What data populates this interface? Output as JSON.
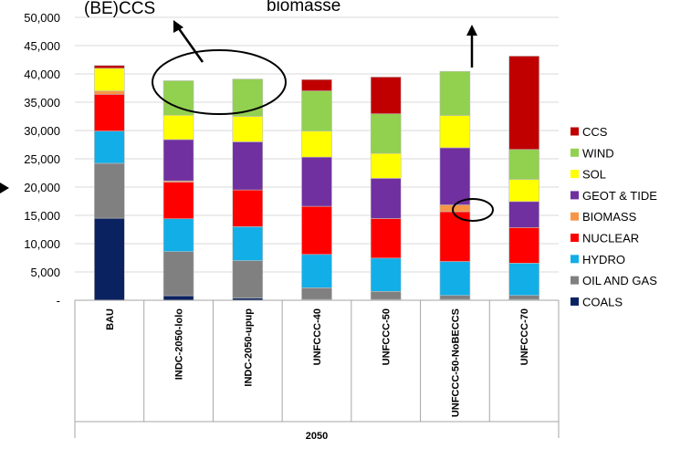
{
  "chart_data": {
    "type": "bar",
    "stacked": true,
    "title": "",
    "xlabel": "",
    "ylabel": "",
    "ylim": [
      0,
      50000
    ],
    "yticks": [
      "-",
      "5,000",
      "10,000",
      "15,000",
      "20,000",
      "25,000",
      "30,000",
      "35,000",
      "40,000",
      "45,000",
      "50,000"
    ],
    "grid": true,
    "legend_position": "right",
    "group_label": "2050",
    "annotations": [
      "(BE)CCS",
      "biomasse"
    ],
    "categories": [
      "BAU",
      "INDC-2050-lolo",
      "INDC-2050-upup",
      "UNFCCC-40",
      "UNFCCC-50",
      "UNFCCC-50-NoBECCS",
      "UNFCCC-70"
    ],
    "series": [
      {
        "name": "COALS",
        "color": "#0b2260",
        "values": [
          14500,
          800,
          400,
          150,
          150,
          150,
          150
        ]
      },
      {
        "name": "OIL AND GAS",
        "color": "#808080",
        "values": [
          9700,
          7800,
          6600,
          2050,
          1400,
          700,
          700
        ]
      },
      {
        "name": "HYDRO",
        "color": "#12aee8",
        "values": [
          5700,
          5800,
          6000,
          5900,
          5900,
          6000,
          5700
        ]
      },
      {
        "name": "NUCLEAR",
        "color": "#ff0000",
        "values": [
          6500,
          6500,
          6500,
          8500,
          7000,
          8800,
          6300
        ]
      },
      {
        "name": "BIOMASS",
        "color": "#f79646",
        "values": [
          600,
          200,
          0,
          0,
          0,
          1200,
          0
        ]
      },
      {
        "name": "GEOT & TIDE",
        "color": "#7030a0",
        "values": [
          0,
          7300,
          8500,
          8700,
          7100,
          10100,
          4600
        ]
      },
      {
        "name": "SOL",
        "color": "#ffff00",
        "values": [
          4000,
          4300,
          4500,
          4600,
          4400,
          5700,
          3900
        ]
      },
      {
        "name": "WIND",
        "color": "#92d050",
        "values": [
          0,
          6100,
          6600,
          7100,
          7000,
          7800,
          5300
        ]
      },
      {
        "name": "CCS",
        "color": "#c00000",
        "values": [
          500,
          0,
          0,
          2000,
          6500,
          0,
          16500
        ]
      }
    ],
    "legend_order": [
      "CCS",
      "WIND",
      "SOL",
      "GEOT & TIDE",
      "BIOMASS",
      "NUCLEAR",
      "HYDRO",
      "OIL AND GAS",
      "COALS"
    ]
  }
}
